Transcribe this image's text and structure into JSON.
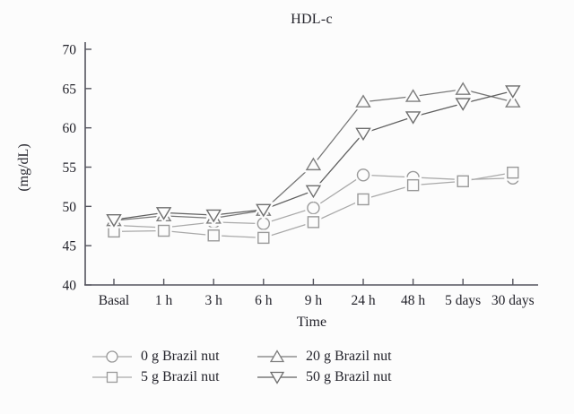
{
  "chart_data": {
    "type": "line",
    "title": "HDL-c",
    "xlabel": "Time",
    "ylabel": "(mg/dL)",
    "ylim": [
      40,
      70
    ],
    "yticks": [
      40,
      45,
      50,
      55,
      60,
      65,
      70
    ],
    "grid": false,
    "legend_position": "bottom",
    "categories": [
      "Basal",
      "1 h",
      "3 h",
      "6 h",
      "9 h",
      "24 h",
      "48 h",
      "5 days",
      "30 days"
    ],
    "series": [
      {
        "id": "0g-brazil-nut",
        "name": "0 g Brazil nut",
        "marker": "circle",
        "line_color": "#a9a9a9",
        "marker_color": "#999999",
        "values": [
          47.6,
          47.3,
          48.0,
          47.8,
          49.8,
          54.0,
          53.7,
          53.4,
          53.6
        ]
      },
      {
        "id": "5g-brazil-nut",
        "name": "5 g Brazil nut",
        "marker": "square",
        "line_color": "#a9a9a9",
        "marker_color": "#999999",
        "values": [
          46.8,
          46.9,
          46.3,
          46.0,
          48.0,
          50.9,
          52.7,
          53.2,
          54.3
        ]
      },
      {
        "id": "20g-brazil-nut",
        "name": "20 g Brazil nut",
        "marker": "triangle-up",
        "line_color": "#787878",
        "marker_color": "#7e7e7e",
        "values": [
          48.2,
          48.8,
          48.5,
          49.5,
          55.3,
          63.3,
          64.0,
          64.9,
          63.3
        ]
      },
      {
        "id": "50g-brazil-nut",
        "name": "50 g Brazil nut",
        "marker": "triangle-down",
        "line_color": "#606060",
        "marker_color": "#6e6e6e",
        "values": [
          48.3,
          49.2,
          48.9,
          49.6,
          52.0,
          59.3,
          61.4,
          63.1,
          64.7
        ]
      }
    ]
  }
}
